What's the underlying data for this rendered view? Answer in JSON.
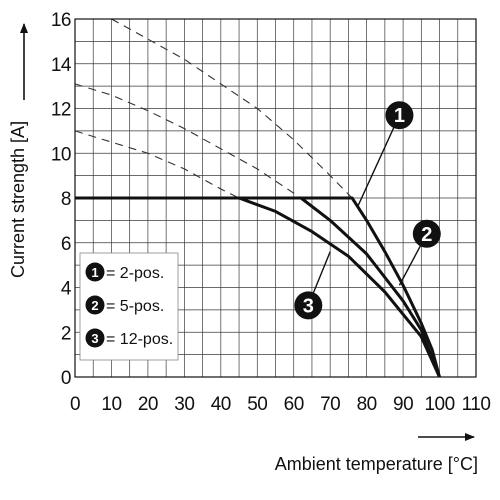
{
  "chart_data": {
    "type": "line",
    "xlabel": "Ambient temperature [°C]",
    "ylabel": "Current strength [A]",
    "xlim": [
      0,
      110
    ],
    "ylim": [
      0,
      16
    ],
    "x_ticks": [
      "0",
      "10",
      "20",
      "30",
      "40",
      "50",
      "60",
      "70",
      "80",
      "90",
      "100",
      "110"
    ],
    "y_ticks": [
      "0",
      "2",
      "4",
      "6",
      "8",
      "10",
      "12",
      "14",
      "16"
    ],
    "grid": true,
    "legend_position": "bottom-left",
    "series": [
      {
        "badge": "1",
        "legend_label": "= 2-pos.",
        "solid": [
          [
            0,
            8
          ],
          [
            76,
            8
          ],
          [
            80,
            7
          ],
          [
            85,
            5.6
          ],
          [
            90,
            4.1
          ],
          [
            95,
            2.4
          ],
          [
            98,
            1.2
          ],
          [
            100,
            0
          ]
        ],
        "dashed": [
          [
            10,
            16
          ],
          [
            20,
            15.1
          ],
          [
            30,
            14.2
          ],
          [
            40,
            13.1
          ],
          [
            50,
            12
          ],
          [
            60,
            10.6
          ],
          [
            70,
            9
          ],
          [
            76,
            8
          ]
        ]
      },
      {
        "badge": "2",
        "legend_label": "= 5-pos.",
        "solid": [
          [
            0,
            8
          ],
          [
            62,
            8
          ],
          [
            70,
            7
          ],
          [
            80,
            5.5
          ],
          [
            90,
            3.4
          ],
          [
            95,
            2.1
          ],
          [
            100,
            0
          ]
        ],
        "dashed": [
          [
            0,
            13.1
          ],
          [
            10,
            12.6
          ],
          [
            20,
            11.9
          ],
          [
            30,
            11.1
          ],
          [
            40,
            10.2
          ],
          [
            50,
            9.3
          ],
          [
            62,
            8
          ]
        ]
      },
      {
        "badge": "3",
        "legend_label": "= 12-pos.",
        "solid": [
          [
            0,
            8
          ],
          [
            45,
            8
          ],
          [
            55,
            7.4
          ],
          [
            65,
            6.5
          ],
          [
            75,
            5.4
          ],
          [
            85,
            3.8
          ],
          [
            95,
            1.8
          ],
          [
            100,
            0
          ]
        ],
        "dashed": [
          [
            0,
            11
          ],
          [
            10,
            10.5
          ],
          [
            20,
            10
          ],
          [
            30,
            9.3
          ],
          [
            40,
            8.4
          ],
          [
            45,
            8
          ]
        ]
      }
    ],
    "callouts": [
      {
        "badge": "1",
        "at": [
          89,
          11.7
        ],
        "points_to": [
          77.5,
          7.6
        ]
      },
      {
        "badge": "2",
        "at": [
          96.5,
          6.4
        ],
        "points_to": [
          89,
          4.1
        ]
      },
      {
        "badge": "3",
        "at": [
          64,
          3.2
        ],
        "points_to": [
          70,
          5.6
        ]
      }
    ]
  }
}
